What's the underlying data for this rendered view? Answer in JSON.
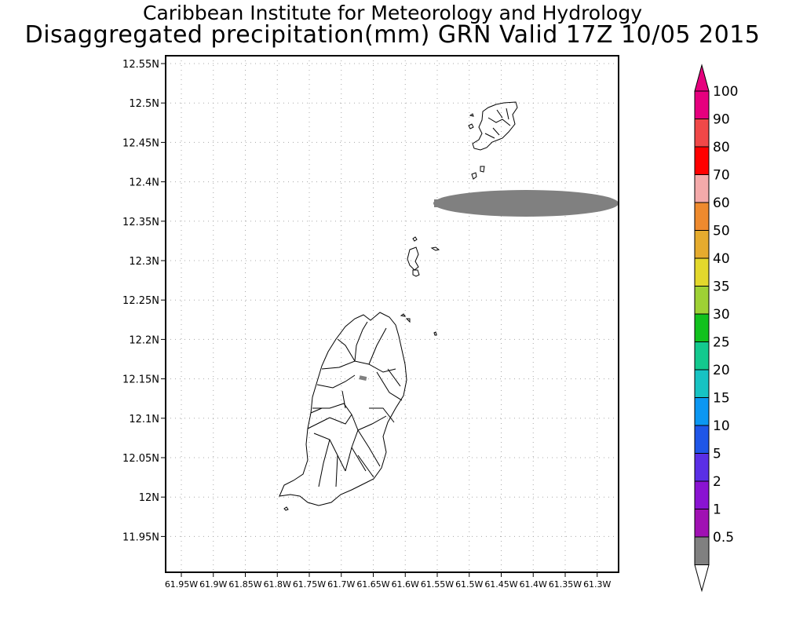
{
  "header": {
    "org_title": "Caribbean Institute for Meteorology and Hydrology",
    "product_title": "Disaggregated precipitation(mm) GRN Valid 17Z 10/05 2015"
  },
  "map": {
    "y_ticks": [
      "12.55N",
      "12.5N",
      "12.45N",
      "12.4N",
      "12.35N",
      "12.3N",
      "12.25N",
      "12.2N",
      "12.15N",
      "12.1N",
      "12.05N",
      "12N",
      "11.95N"
    ],
    "x_ticks": [
      "61.95W",
      "61.9W",
      "61.85W",
      "61.8W",
      "61.75W",
      "61.7W",
      "61.65W",
      "61.6W",
      "61.55W",
      "61.5W",
      "61.45W",
      "61.4W",
      "61.35W",
      "61.3W"
    ],
    "grid": true,
    "features": [
      "Grenada",
      "Carriacou",
      "Ronde Island"
    ],
    "rain_area_band": "0.5-1"
  },
  "legend": {
    "labels": [
      "100",
      "90",
      "80",
      "70",
      "60",
      "50",
      "40",
      "35",
      "30",
      "25",
      "20",
      "15",
      "10",
      "5",
      "2",
      "1",
      "0.5"
    ],
    "colors": [
      "#e6007e",
      "#f04848",
      "#ff0000",
      "#f4aaaa",
      "#ee8a2e",
      "#e5ab2e",
      "#e3d82c",
      "#9ed135",
      "#11c11d",
      "#13c98e",
      "#17c3c3",
      "#0b97f2",
      "#1f56e8",
      "#5a2fe6",
      "#8a13d2",
      "#a011b3",
      "#808080"
    ],
    "over_color": "#e6007e",
    "under_color": "#ffffff"
  }
}
